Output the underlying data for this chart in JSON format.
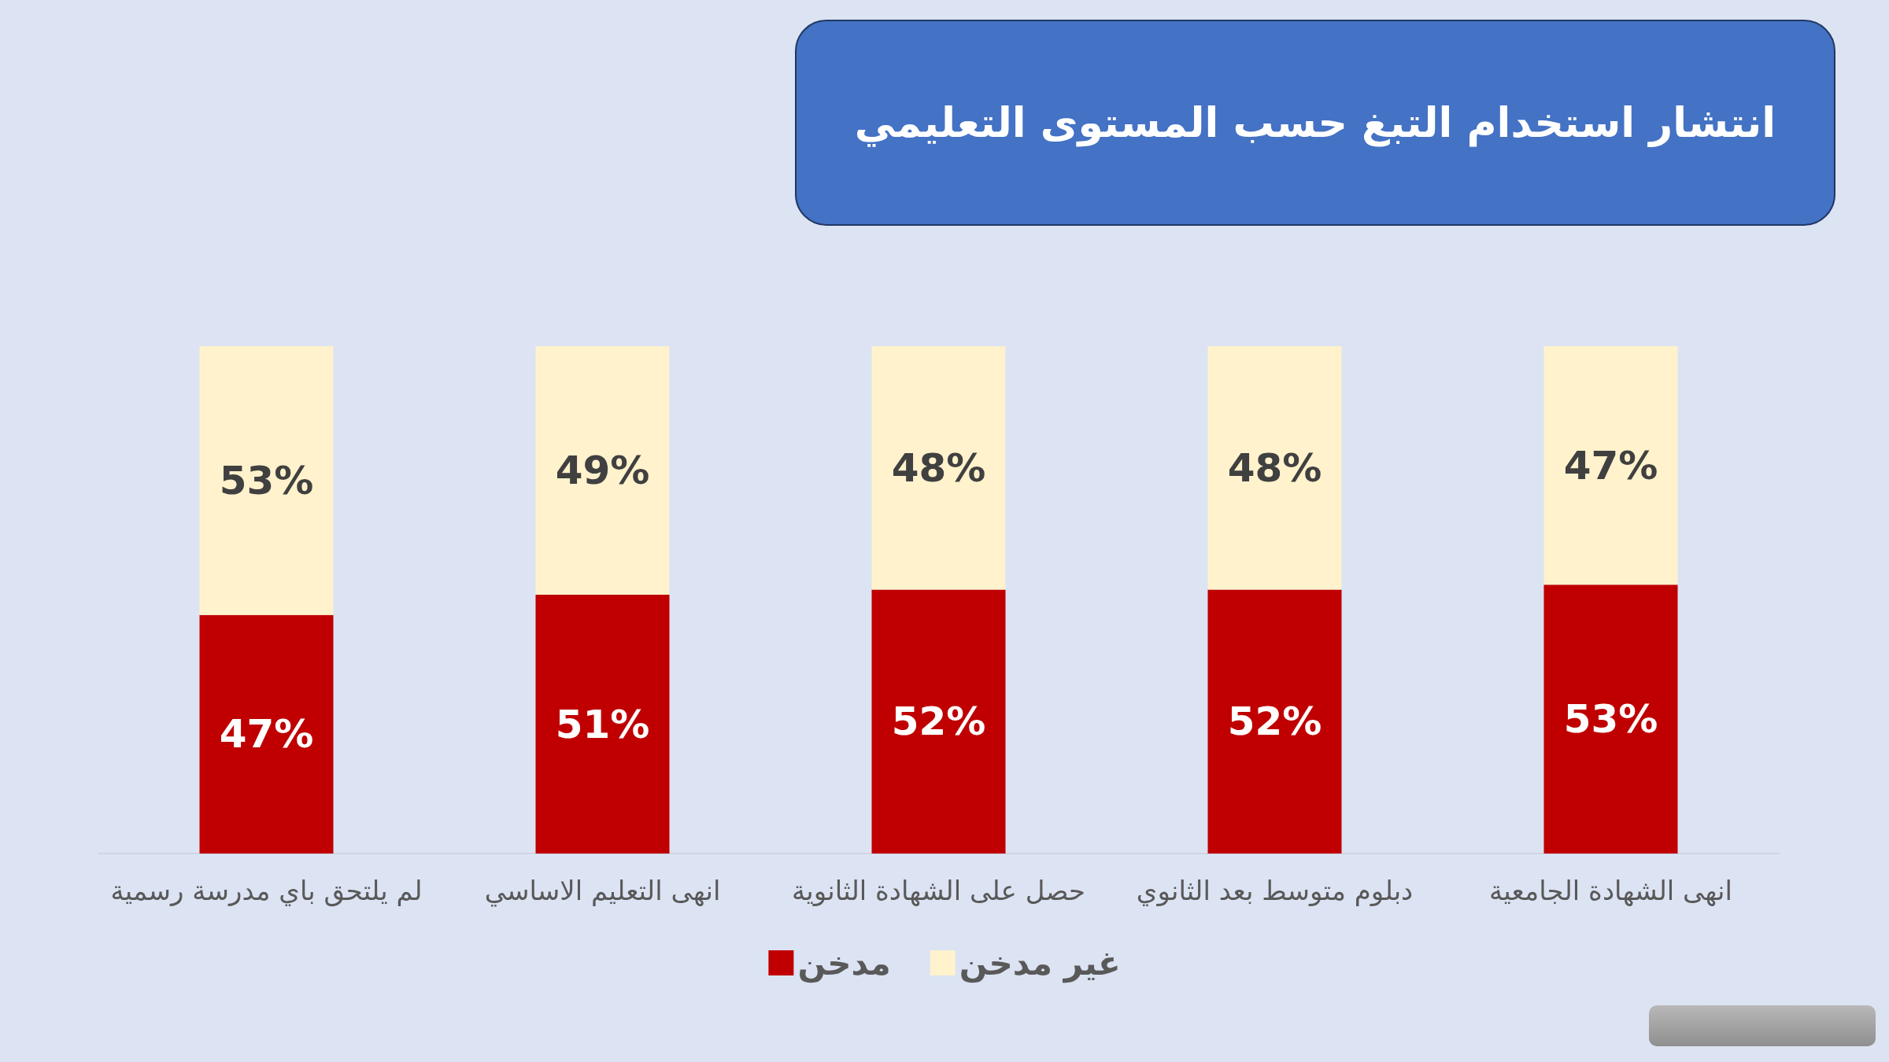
{
  "chart_data": {
    "type": "bar",
    "title": "انتشار استخدام التبغ حسب المستوى التعليمي",
    "stacked": true,
    "legend": "bottom",
    "categories": [
      "لم يلتحق باي مدرسة رسمية",
      "انهى التعليم الاساسي",
      "حصل على الشهادة الثانوية",
      "دبلوم متوسط بعد الثانوي",
      "انهى الشهادة الجامعية"
    ],
    "ylim": [
      0,
      100
    ],
    "series": [
      {
        "name": "مدخن",
        "color": "#c00000",
        "values": [
          47,
          51,
          52,
          52,
          53
        ],
        "value_labels": [
          "47%",
          "51%",
          "52%",
          "52%",
          "53%"
        ]
      },
      {
        "name": "غير مدخن",
        "color": "#fff2cc",
        "values": [
          53,
          49,
          48,
          48,
          47
        ],
        "value_labels": [
          "53%",
          "49%",
          "48%",
          "48%",
          "47%"
        ]
      }
    ]
  }
}
